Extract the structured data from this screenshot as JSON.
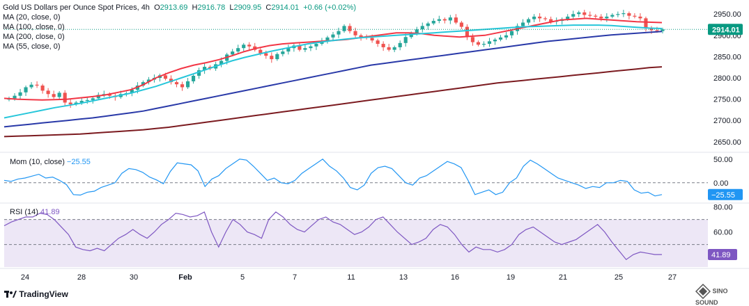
{
  "header": {
    "title": "Gold US Dollars per Ounce Spot Prices, 4h",
    "o_label": "O",
    "o": "2913.69",
    "h_label": "H",
    "h": "2916.78",
    "l_label": "L",
    "l": "2909.95",
    "c_label": "C",
    "c": "2914.01",
    "change": "+0.66 (+0.02%)"
  },
  "legend": {
    "ma20": "MA (20, close, 0)",
    "ma100": "MA (100, close, 0)",
    "ma200": "MA (200, close, 0)",
    "ma55": "MA (55, close, 0)",
    "mom": "Mom (10, close)",
    "mom_value": "−25.55",
    "rsi": "RSI (14)",
    "rsi_value": "41.89"
  },
  "brand": {
    "name": "TradingView",
    "watermark": "SINO SOUND"
  },
  "colors": {
    "up": "#26a69a",
    "down": "#ef5350",
    "ma20": "#f23645",
    "ma55": "#26c6da",
    "ma100": "#2939a8",
    "ma200": "#7b1a1f",
    "mom": "#2196f3",
    "rsi": "#7e57c2",
    "rsi_band": "#ede7f6",
    "last_price_bg": "#089981"
  },
  "chart_data": [
    {
      "type": "candlestick",
      "title": "Gold US Dollars per Ounce Spot Prices, 4h",
      "x_ticks": [
        "24",
        "28",
        "30",
        "Feb",
        "5",
        "7",
        "11",
        "13",
        "16",
        "19",
        "21",
        "25",
        "27"
      ],
      "y_ticks": [
        "2950.00",
        "2900.00",
        "2850.00",
        "2800.00",
        "2750.00",
        "2700.00",
        "2650.00"
      ],
      "ylim": [
        2630,
        2970
      ],
      "last_price": "2914.01",
      "close": [
        2752,
        2758,
        2766,
        2778,
        2784,
        2782,
        2770,
        2762,
        2755,
        2765,
        2742,
        2738,
        2742,
        2746,
        2748,
        2752,
        2760,
        2762,
        2758,
        2755,
        2762,
        2764,
        2772,
        2782,
        2790,
        2796,
        2800,
        2806,
        2798,
        2790,
        2785,
        2778,
        2792,
        2805,
        2818,
        2826,
        2822,
        2832,
        2840,
        2855,
        2862,
        2870,
        2878,
        2874,
        2866,
        2858,
        2852,
        2844,
        2856,
        2862,
        2870,
        2876,
        2866,
        2870,
        2874,
        2880,
        2886,
        2895,
        2902,
        2910,
        2922,
        2910,
        2900,
        2896,
        2894,
        2888,
        2880,
        2872,
        2866,
        2872,
        2882,
        2896,
        2905,
        2914,
        2922,
        2928,
        2934,
        2938,
        2935,
        2942,
        2930,
        2920,
        2896,
        2884,
        2878,
        2880,
        2886,
        2890,
        2895,
        2900,
        2910,
        2922,
        2930,
        2938,
        2944,
        2940,
        2938,
        2932,
        2934,
        2938,
        2944,
        2950,
        2954,
        2948,
        2946,
        2944,
        2940,
        2944,
        2948,
        2950,
        2952,
        2946,
        2944,
        2940,
        2916,
        2912,
        2910,
        2914
      ],
      "series": [
        {
          "name": "MA (20, close, 0)",
          "values": [
            2752,
            2750,
            2749,
            2748,
            2749,
            2750,
            2753,
            2756,
            2760,
            2766,
            2772,
            2784,
            2800,
            2812,
            2822,
            2830,
            2836,
            2843,
            2852,
            2862,
            2870,
            2876,
            2880,
            2882,
            2884,
            2886,
            2888,
            2890,
            2894,
            2898,
            2902,
            2906,
            2906,
            2904,
            2900,
            2898,
            2896,
            2898,
            2900,
            2906,
            2912,
            2918,
            2924,
            2930,
            2936,
            2938,
            2940,
            2938,
            2936,
            2934,
            2932,
            2931,
            2930
          ]
        },
        {
          "name": "MA (55, close, 0)",
          "values": [
            2706,
            2712,
            2718,
            2724,
            2730,
            2735,
            2740,
            2746,
            2752,
            2758,
            2764,
            2772,
            2780,
            2790,
            2800,
            2810,
            2820,
            2830,
            2840,
            2848,
            2855,
            2862,
            2868,
            2874,
            2880,
            2884,
            2888,
            2891,
            2894,
            2896,
            2898,
            2900,
            2902,
            2904,
            2906,
            2908,
            2910,
            2912,
            2914,
            2916,
            2918,
            2920,
            2921,
            2922,
            2923,
            2924,
            2924,
            2924,
            2923,
            2921,
            2919,
            2917,
            2916
          ]
        },
        {
          "name": "MA (100, close, 0)",
          "values": [
            2685,
            2688,
            2691,
            2694,
            2697,
            2700,
            2703,
            2706,
            2710,
            2714,
            2718,
            2722,
            2728,
            2734,
            2740,
            2746,
            2752,
            2758,
            2764,
            2770,
            2776,
            2782,
            2788,
            2794,
            2800,
            2806,
            2812,
            2818,
            2824,
            2830,
            2834,
            2838,
            2842,
            2846,
            2850,
            2854,
            2858,
            2862,
            2866,
            2870,
            2874,
            2878,
            2882,
            2886,
            2889,
            2892,
            2895,
            2898,
            2901,
            2903,
            2905,
            2907,
            2909
          ]
        },
        {
          "name": "MA (200, close, 0)",
          "values": [
            2662,
            2663,
            2664,
            2665,
            2666,
            2667,
            2668,
            2670,
            2672,
            2674,
            2676,
            2678,
            2681,
            2684,
            2688,
            2692,
            2696,
            2700,
            2704,
            2708,
            2712,
            2716,
            2720,
            2724,
            2728,
            2732,
            2736,
            2740,
            2744,
            2748,
            2752,
            2756,
            2760,
            2764,
            2768,
            2772,
            2776,
            2780,
            2784,
            2788,
            2791,
            2794,
            2797,
            2800,
            2803,
            2806,
            2809,
            2812,
            2815,
            2818,
            2821,
            2824,
            2826
          ]
        }
      ]
    },
    {
      "type": "line",
      "title": "Mom (10, close)",
      "y_ticks": [
        "50.00",
        "0.00"
      ],
      "ylim": [
        -40,
        60
      ],
      "zero_line": 0,
      "last_value": "−25.55",
      "series": [
        {
          "name": "Mom (10, close)",
          "values": [
            5,
            3,
            8,
            10,
            14,
            18,
            10,
            12,
            5,
            -4,
            -25,
            -26,
            -20,
            -18,
            -10,
            -5,
            0,
            20,
            30,
            28,
            22,
            12,
            6,
            -2,
            24,
            42,
            40,
            38,
            25,
            -8,
            8,
            15,
            30,
            40,
            50,
            48,
            35,
            20,
            5,
            10,
            0,
            -2,
            5,
            20,
            30,
            40,
            50,
            35,
            25,
            10,
            -10,
            -15,
            -5,
            20,
            32,
            35,
            30,
            15,
            0,
            -5,
            10,
            15,
            25,
            35,
            45,
            40,
            32,
            5,
            -25,
            -20,
            -15,
            -25,
            -20,
            0,
            10,
            35,
            48,
            40,
            30,
            20,
            10,
            5,
            0,
            -5,
            -12,
            -8,
            -10,
            0,
            0,
            5,
            3,
            -15,
            -22,
            -20,
            -28,
            -25
          ]
        }
      ]
    },
    {
      "type": "line",
      "title": "RSI (14)",
      "y_ticks": [
        "80.00",
        "60.00"
      ],
      "ylim": [
        32,
        82
      ],
      "band": [
        30,
        70
      ],
      "midline": 50,
      "last_value": "41.89",
      "series": [
        {
          "name": "RSI (14)",
          "values": [
            65,
            68,
            70,
            72,
            72,
            75,
            74,
            70,
            64,
            58,
            48,
            46,
            45,
            47,
            45,
            50,
            55,
            58,
            62,
            58,
            55,
            60,
            66,
            70,
            75,
            74,
            72,
            73,
            76,
            60,
            48,
            60,
            70,
            66,
            60,
            58,
            55,
            70,
            76,
            72,
            66,
            62,
            60,
            65,
            70,
            72,
            68,
            66,
            62,
            58,
            60,
            64,
            70,
            72,
            66,
            60,
            55,
            50,
            52,
            55,
            62,
            66,
            64,
            58,
            50,
            44,
            48,
            46,
            46,
            44,
            46,
            50,
            58,
            62,
            64,
            60,
            56,
            52,
            50,
            52,
            54,
            58,
            62,
            66,
            60,
            52,
            45,
            38,
            42,
            44,
            43,
            42,
            42
          ]
        }
      ]
    }
  ]
}
